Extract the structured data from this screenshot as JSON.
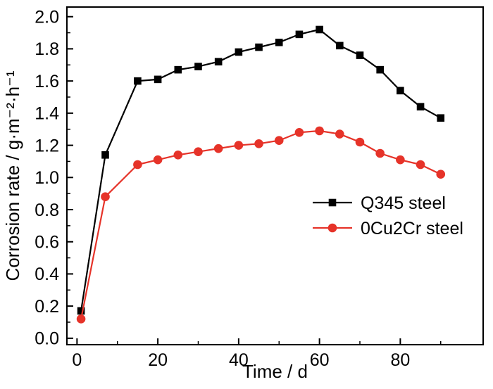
{
  "figure": {
    "background": "#ffffff",
    "axis_color": "#000000"
  },
  "chart_data": {
    "type": "line",
    "title": "",
    "xlabel": "Time / d",
    "ylabel": "Corrosion rate / g·m⁻²·h⁻¹",
    "xlim": [
      -2.5,
      100.5
    ],
    "ylim": [
      -0.04,
      2.06
    ],
    "x_major_ticks": [
      0,
      20,
      40,
      60,
      80
    ],
    "x_minor_ticks": [
      10,
      30,
      50,
      70,
      90
    ],
    "y_major_ticks": [
      0.0,
      0.2,
      0.4,
      0.6,
      0.8,
      1.0,
      1.2,
      1.4,
      1.6,
      1.8,
      2.0
    ],
    "y_minor_ticks": [
      0.1,
      0.3,
      0.5,
      0.7,
      0.9,
      1.1,
      1.3,
      1.5,
      1.7,
      1.9
    ],
    "grid": false,
    "legend_position": "middle-right",
    "x": [
      1,
      7,
      15,
      20,
      25,
      30,
      35,
      40,
      45,
      50,
      55,
      60,
      65,
      70,
      75,
      80,
      85,
      90
    ],
    "series": [
      {
        "name": "Q345 steel",
        "marker": "square",
        "color": "#000000",
        "values": [
          0.17,
          1.14,
          1.6,
          1.61,
          1.67,
          1.69,
          1.72,
          1.78,
          1.81,
          1.84,
          1.89,
          1.92,
          1.82,
          1.76,
          1.67,
          1.54,
          1.44,
          1.37
        ]
      },
      {
        "name": "0Cu2Cr steel",
        "marker": "circle",
        "color": "#e63329",
        "values": [
          0.12,
          0.88,
          1.08,
          1.11,
          1.14,
          1.16,
          1.18,
          1.2,
          1.21,
          1.23,
          1.28,
          1.29,
          1.27,
          1.22,
          1.15,
          1.11,
          1.08,
          1.02
        ]
      }
    ]
  }
}
